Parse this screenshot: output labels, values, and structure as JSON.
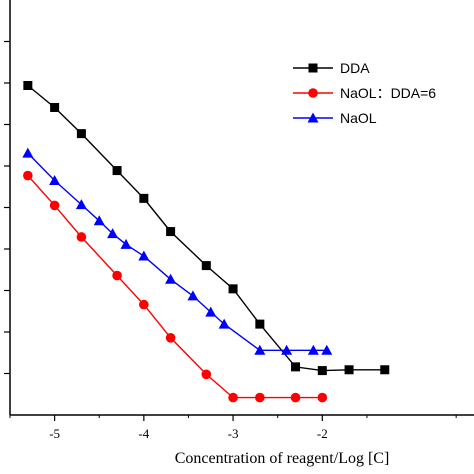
{
  "chart_data": {
    "type": "line",
    "title": "",
    "xlabel": "Concentration of reagent/Log [C]",
    "ylabel": "",
    "xlim": [
      -5.5,
      -0.3
    ],
    "ylim": [
      0,
      100
    ],
    "x_ticks": [
      -5,
      -4,
      -3,
      -2
    ],
    "x_tick_labels": [
      "-5",
      "-4",
      "-3",
      "-2"
    ],
    "y_tick_values": [
      10,
      20,
      30,
      40,
      50,
      60,
      70,
      80,
      90
    ],
    "legend_position": "top-right",
    "grid": false,
    "series": [
      {
        "name": "DDA",
        "color": "#000000",
        "marker": "square",
        "x": [
          -5.3,
          -5.0,
          -4.7,
          -4.3,
          -4.0,
          -3.7,
          -3.3,
          -3.0,
          -2.7,
          -2.3,
          -2.0,
          -1.7,
          -1.3
        ],
        "y": [
          79.4,
          74.1,
          67.8,
          58.9,
          52.2,
          44.2,
          36.0,
          30.4,
          21.9,
          11.6,
          10.7,
          10.9,
          10.9
        ]
      },
      {
        "name": "NaOL：DDA=6",
        "color": "#ff0000",
        "marker": "circle",
        "x": [
          -5.3,
          -5.0,
          -4.7,
          -4.3,
          -4.0,
          -3.7,
          -3.3,
          -3.0,
          -2.7,
          -2.3,
          -2.0
        ],
        "y": [
          57.7,
          50.5,
          42.9,
          33.6,
          26.6,
          18.6,
          9.8,
          4.2,
          4.2,
          4.2,
          4.2
        ]
      },
      {
        "name": "NaOL",
        "color": "#0000ff",
        "marker": "triangle",
        "x": [
          -5.3,
          -5.0,
          -4.7,
          -4.5,
          -4.35,
          -4.2,
          -4.0,
          -3.7,
          -3.45,
          -3.25,
          -3.1,
          -2.7,
          -2.4,
          -2.1,
          -1.95
        ],
        "y": [
          63.1,
          56.5,
          50.7,
          46.8,
          43.7,
          41.1,
          38.3,
          32.7,
          28.7,
          24.8,
          21.9,
          15.6,
          15.6,
          15.6,
          15.6
        ]
      }
    ]
  }
}
